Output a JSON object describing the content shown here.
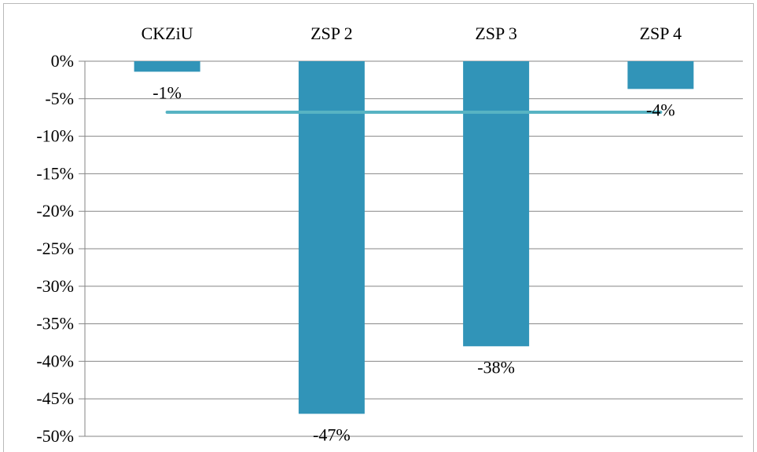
{
  "chart_data": {
    "type": "bar",
    "categories": [
      "CKZiU",
      "ZSP 2",
      "ZSP 3",
      "ZSP 4"
    ],
    "values": [
      -1.4,
      -47,
      -38,
      -3.7
    ],
    "data_labels": [
      "-1%",
      "-47%",
      "-38%",
      "-4%"
    ],
    "ylim": [
      -50,
      0
    ],
    "yticks": [
      0,
      -5,
      -10,
      -15,
      -20,
      -25,
      -30,
      -35,
      -40,
      -45,
      -50
    ],
    "ytick_labels": [
      "0%",
      "-5%",
      "-10%",
      "-15%",
      "-20%",
      "-25%",
      "-30%",
      "-35%",
      "-40%",
      "-45%",
      "-50%"
    ],
    "average_line_value": -6.8,
    "grid": true,
    "category_axis_position": "top",
    "colors": {
      "bar": "#3194b8",
      "average_line": "#57b3c3",
      "grid": "#868686"
    }
  }
}
